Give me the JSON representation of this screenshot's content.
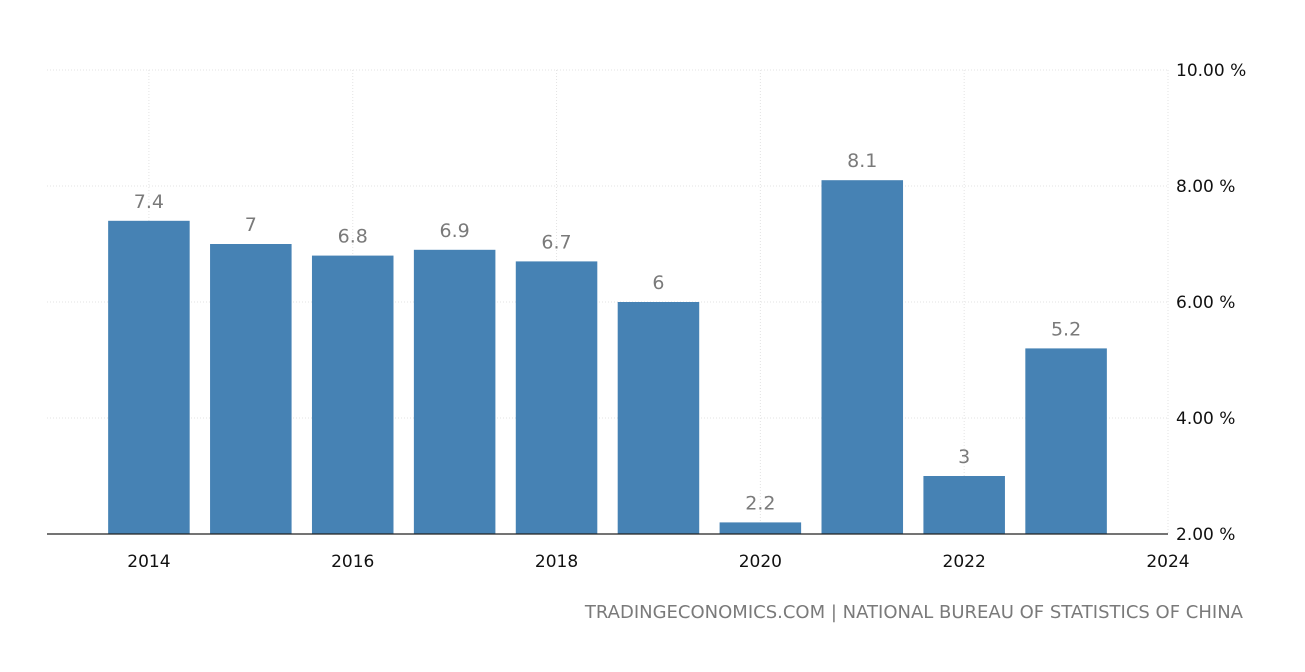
{
  "chart_data": {
    "type": "bar",
    "title": "",
    "xlabel": "",
    "ylabel": "",
    "x": [
      2014,
      2015,
      2016,
      2017,
      2018,
      2019,
      2020,
      2021,
      2022,
      2023
    ],
    "values": [
      7.4,
      7,
      6.8,
      6.9,
      6.7,
      6,
      2.2,
      8.1,
      3,
      5.2
    ],
    "data_labels": [
      "7.4",
      "7",
      "6.8",
      "6.9",
      "6.7",
      "6",
      "2.2",
      "8.1",
      "3",
      "5.2"
    ],
    "xlim": [
      2013,
      2024
    ],
    "ylim": [
      2,
      10
    ],
    "x_ticks": [
      2014,
      2016,
      2018,
      2020,
      2022,
      2024
    ],
    "x_tick_labels": [
      "2014",
      "2016",
      "2018",
      "2020",
      "2022",
      "2024"
    ],
    "y_ticks": [
      2,
      4,
      6,
      8,
      10
    ],
    "y_tick_labels": [
      "2.00 %",
      "4.00 %",
      "6.00 %",
      "8.00 %",
      "10.00 %"
    ],
    "y_axis_side": "right",
    "grid": true,
    "bar_color": "#4682b4",
    "source": "TRADINGECONOMICS.COM | NATIONAL BUREAU OF STATISTICS OF CHINA"
  }
}
